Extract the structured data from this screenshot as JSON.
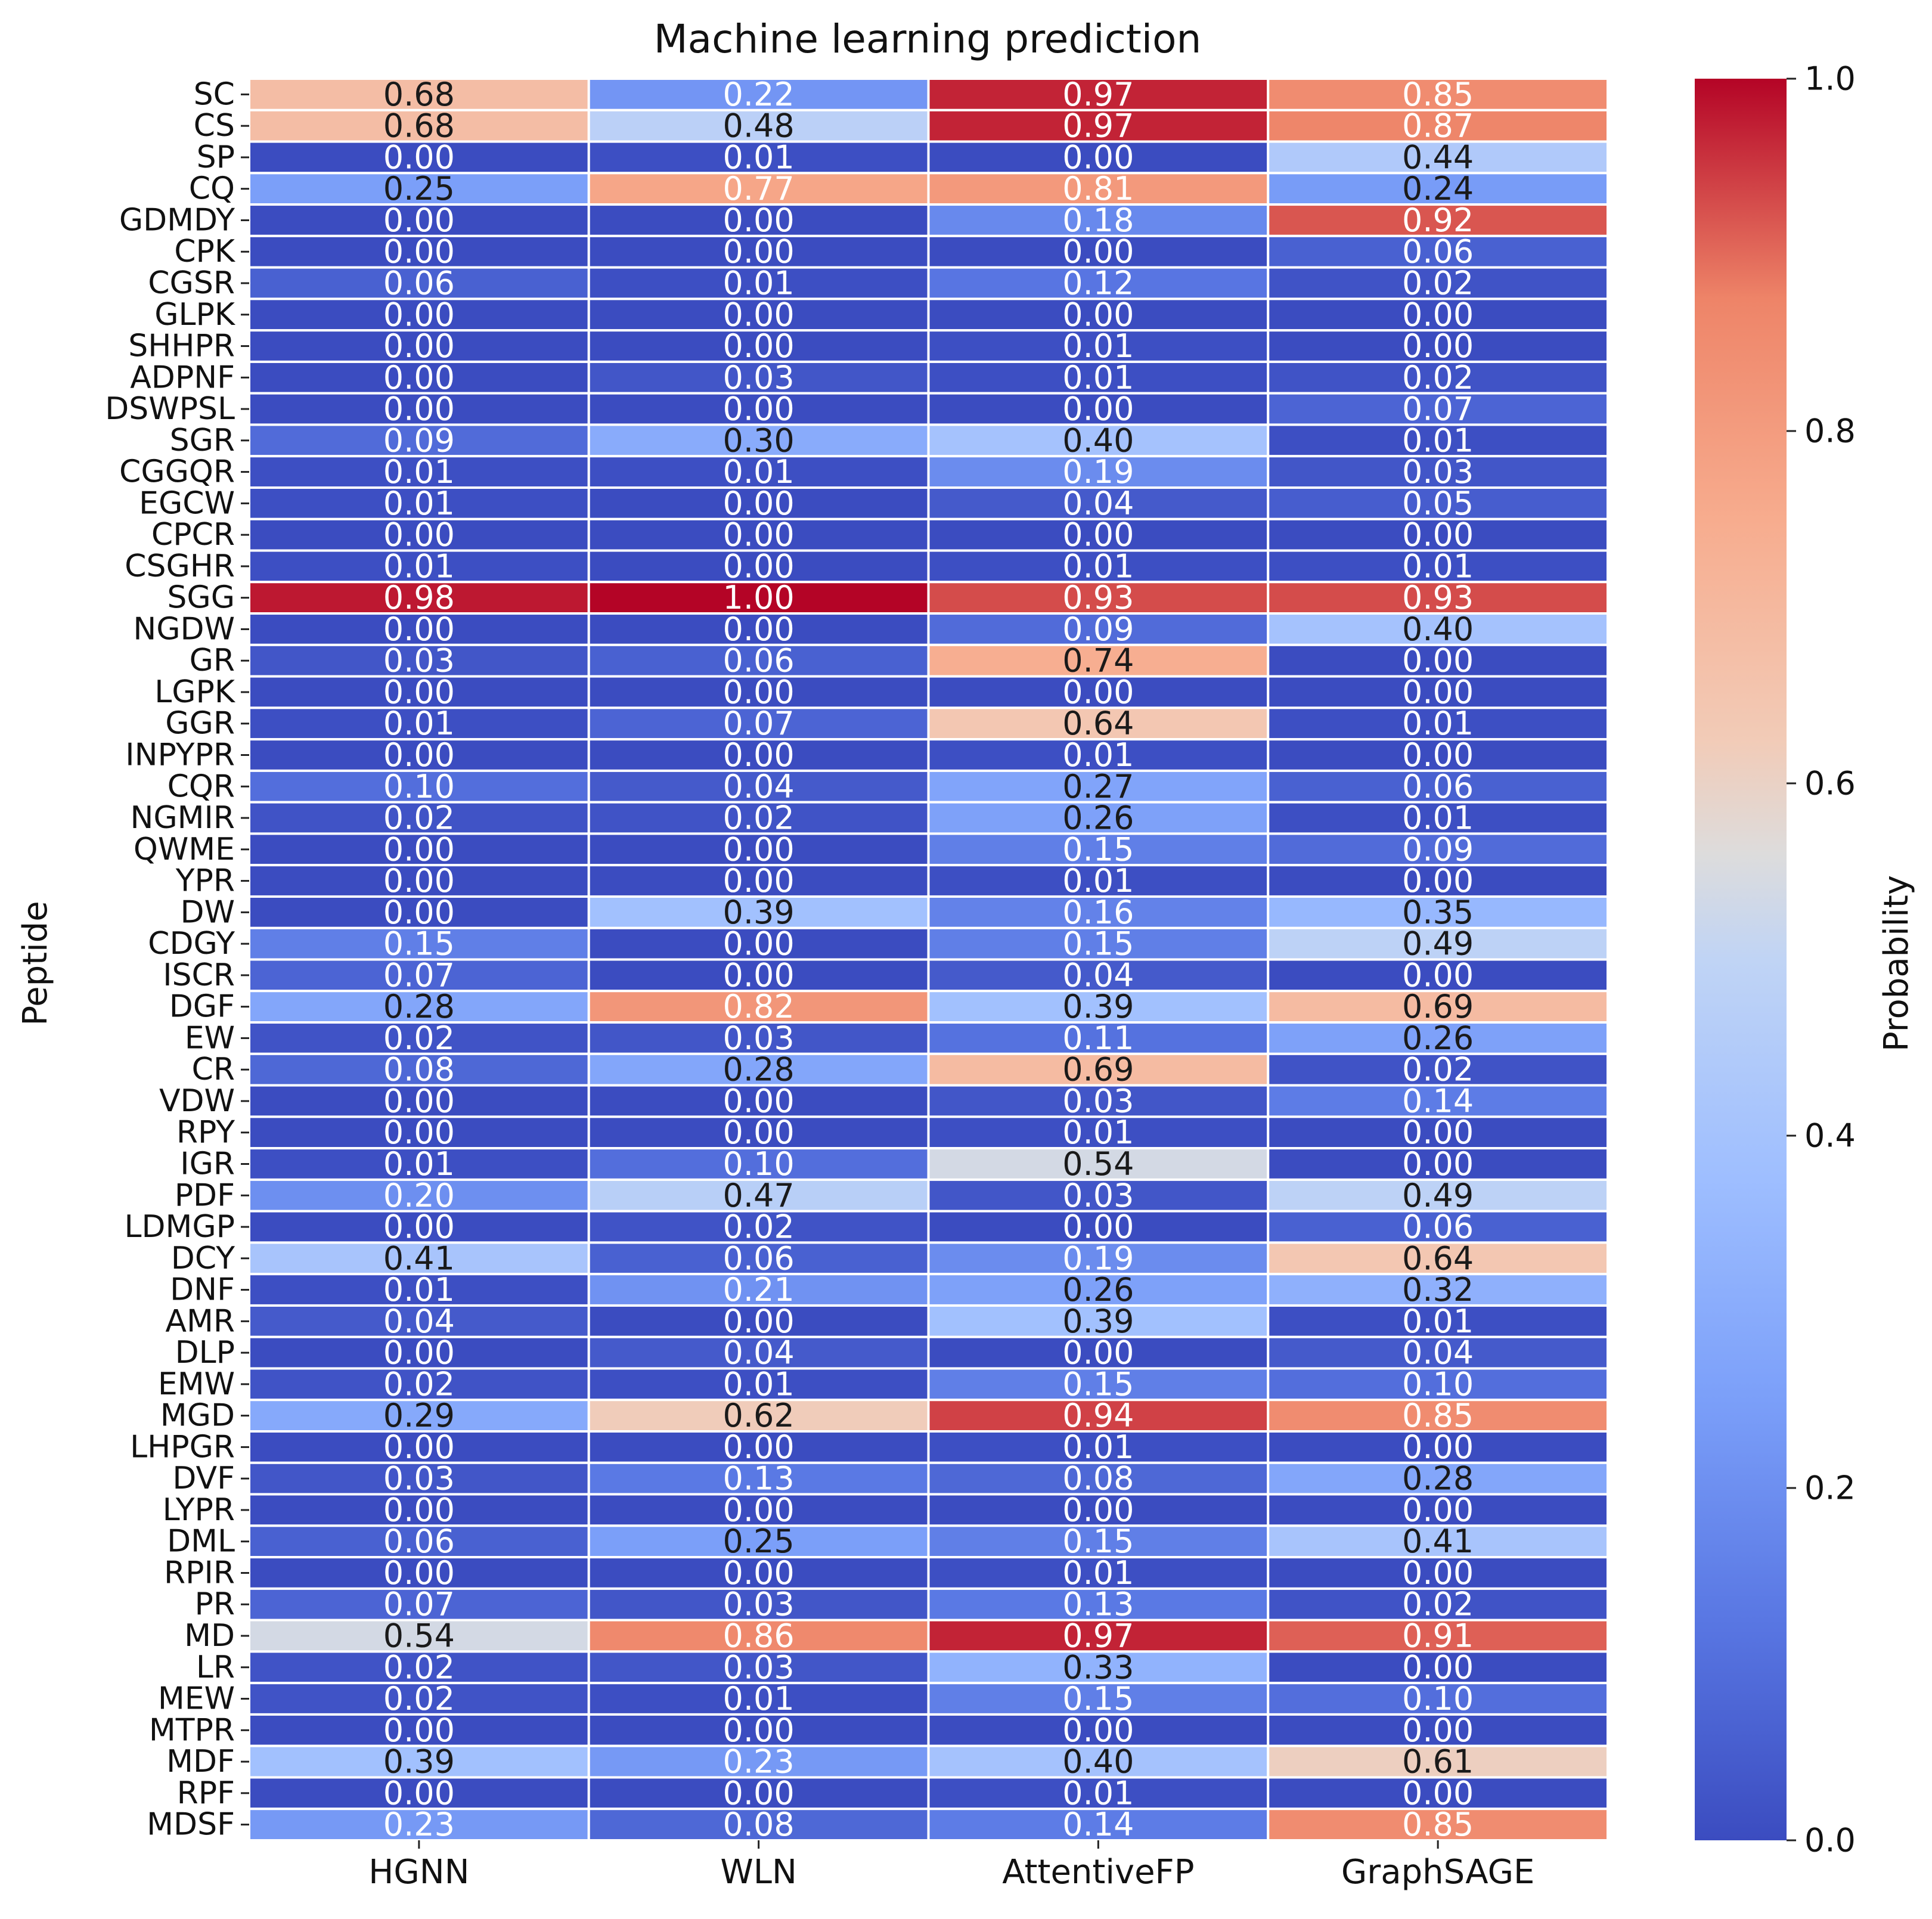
{
  "chart_data": {
    "type": "heatmap",
    "title": "Machine learning prediction",
    "xlabel": "",
    "ylabel": "Peptide",
    "columns": [
      "HGNN",
      "WLN",
      "AttentiveFP",
      "GraphSAGE"
    ],
    "rows": [
      "SC",
      "CS",
      "SP",
      "CQ",
      "GDMDY",
      "CPK",
      "CGSR",
      "GLPK",
      "SHHPR",
      "ADPNF",
      "DSWPSL",
      "SGR",
      "CGGQR",
      "EGCW",
      "CPCR",
      "CSGHR",
      "SGG",
      "NGDW",
      "GR",
      "LGPK",
      "GGR",
      "INPYPR",
      "CQR",
      "NGMIR",
      "QWME",
      "YPR",
      "DW",
      "CDGY",
      "ISCR",
      "DGF",
      "EW",
      "CR",
      "VDW",
      "RPY",
      "IGR",
      "PDF",
      "LDMGP",
      "DCY",
      "DNF",
      "AMR",
      "DLP",
      "EMW",
      "MGD",
      "LHPGR",
      "DVF",
      "LYPR",
      "DML",
      "RPIR",
      "PR",
      "MD",
      "LR",
      "MEW",
      "MTPR",
      "MDF",
      "RPF",
      "MDSF"
    ],
    "values": [
      [
        0.68,
        0.22,
        0.97,
        0.85
      ],
      [
        0.68,
        0.48,
        0.97,
        0.87
      ],
      [
        0.0,
        0.01,
        0.0,
        0.44
      ],
      [
        0.25,
        0.77,
        0.81,
        0.24
      ],
      [
        0.0,
        0.0,
        0.18,
        0.92
      ],
      [
        0.0,
        0.0,
        0.0,
        0.06
      ],
      [
        0.06,
        0.01,
        0.12,
        0.02
      ],
      [
        0.0,
        0.0,
        0.0,
        0.0
      ],
      [
        0.0,
        0.0,
        0.01,
        0.0
      ],
      [
        0.0,
        0.03,
        0.01,
        0.02
      ],
      [
        0.0,
        0.0,
        0.0,
        0.07
      ],
      [
        0.09,
        0.3,
        0.4,
        0.01
      ],
      [
        0.01,
        0.01,
        0.19,
        0.03
      ],
      [
        0.01,
        0.0,
        0.04,
        0.05
      ],
      [
        0.0,
        0.0,
        0.0,
        0.0
      ],
      [
        0.01,
        0.0,
        0.01,
        0.01
      ],
      [
        0.98,
        1.0,
        0.93,
        0.93
      ],
      [
        0.0,
        0.0,
        0.09,
        0.4
      ],
      [
        0.03,
        0.06,
        0.74,
        0.0
      ],
      [
        0.0,
        0.0,
        0.0,
        0.0
      ],
      [
        0.01,
        0.07,
        0.64,
        0.01
      ],
      [
        0.0,
        0.0,
        0.01,
        0.0
      ],
      [
        0.1,
        0.04,
        0.27,
        0.06
      ],
      [
        0.02,
        0.02,
        0.26,
        0.01
      ],
      [
        0.0,
        0.0,
        0.15,
        0.09
      ],
      [
        0.0,
        0.0,
        0.01,
        0.0
      ],
      [
        0.0,
        0.39,
        0.16,
        0.35
      ],
      [
        0.15,
        0.0,
        0.15,
        0.49
      ],
      [
        0.07,
        0.0,
        0.04,
        0.0
      ],
      [
        0.28,
        0.82,
        0.39,
        0.69
      ],
      [
        0.02,
        0.03,
        0.11,
        0.26
      ],
      [
        0.08,
        0.28,
        0.69,
        0.02
      ],
      [
        0.0,
        0.0,
        0.03,
        0.14
      ],
      [
        0.0,
        0.0,
        0.01,
        0.0
      ],
      [
        0.01,
        0.1,
        0.54,
        0.0
      ],
      [
        0.2,
        0.47,
        0.03,
        0.49
      ],
      [
        0.0,
        0.02,
        0.0,
        0.06
      ],
      [
        0.41,
        0.06,
        0.19,
        0.64
      ],
      [
        0.01,
        0.21,
        0.26,
        0.32
      ],
      [
        0.04,
        0.0,
        0.39,
        0.01
      ],
      [
        0.0,
        0.04,
        0.0,
        0.04
      ],
      [
        0.02,
        0.01,
        0.15,
        0.1
      ],
      [
        0.29,
        0.62,
        0.94,
        0.85
      ],
      [
        0.0,
        0.0,
        0.01,
        0.0
      ],
      [
        0.03,
        0.13,
        0.08,
        0.28
      ],
      [
        0.0,
        0.0,
        0.0,
        0.0
      ],
      [
        0.06,
        0.25,
        0.15,
        0.41
      ],
      [
        0.0,
        0.0,
        0.01,
        0.0
      ],
      [
        0.07,
        0.03,
        0.13,
        0.02
      ],
      [
        0.54,
        0.86,
        0.97,
        0.91
      ],
      [
        0.02,
        0.03,
        0.33,
        0.0
      ],
      [
        0.02,
        0.01,
        0.15,
        0.1
      ],
      [
        0.0,
        0.0,
        0.0,
        0.0
      ],
      [
        0.39,
        0.23,
        0.4,
        0.61
      ],
      [
        0.0,
        0.0,
        0.01,
        0.0
      ],
      [
        0.23,
        0.08,
        0.14,
        0.85
      ]
    ],
    "value_format": "2 decimals",
    "colorscale": "coolwarm",
    "vmin": 0.0,
    "vmax": 1.0,
    "colorbar": {
      "label": "Probability",
      "ticks": [
        "0.0",
        "0.2",
        "0.4",
        "0.6",
        "0.8",
        "1.0"
      ],
      "placement": "right"
    },
    "grid": "white cell separators"
  }
}
